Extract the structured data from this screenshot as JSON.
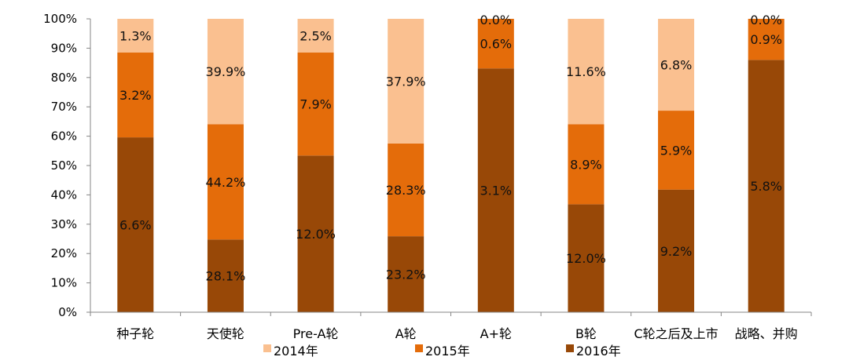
{
  "chart_data": {
    "type": "bar",
    "stacked": true,
    "categories": [
      "种子轮",
      "天使轮",
      "Pre-A轮",
      "A轮",
      "A+轮",
      "B轮",
      "C轮之后及上市",
      "战略、并购"
    ],
    "y_ticks": [
      "0%",
      "10%",
      "20%",
      "30%",
      "40%",
      "50%",
      "60%",
      "70%",
      "80%",
      "90%",
      "100%"
    ],
    "ylim": [
      0,
      100
    ],
    "series": [
      {
        "name": "2016年",
        "color": "#984807",
        "values": [
          59.6,
          24.8,
          53.4,
          25.9,
          83.1,
          36.8,
          41.8,
          86.0
        ],
        "labels": [
          "6.6%",
          "28.1%",
          "12.0%",
          "23.2%",
          "3.1%",
          "12.0%",
          "9.2%",
          "5.8%"
        ]
      },
      {
        "name": "2015年",
        "color": "#e46c0a",
        "values": [
          28.9,
          39.3,
          35.1,
          31.6,
          16.9,
          27.3,
          26.9,
          14.0
        ],
        "labels": [
          "3.2%",
          "44.2%",
          "7.9%",
          "28.3%",
          "0.6%",
          "8.9%",
          "5.9%",
          "0.9%"
        ]
      },
      {
        "name": "2014年",
        "color": "#fac090",
        "values": [
          11.5,
          35.9,
          11.5,
          42.5,
          0.0,
          35.9,
          31.3,
          0.0
        ],
        "labels": [
          "1.3%",
          "39.9%",
          "2.5%",
          "37.9%",
          "0.0%",
          "11.6%",
          "6.8%",
          "0.0%"
        ]
      }
    ],
    "legend": [
      {
        "name": "2014年",
        "color": "#fac090"
      },
      {
        "name": "2015年",
        "color": "#e46c0a"
      },
      {
        "name": "2016年",
        "color": "#984807"
      }
    ],
    "legend_position": "bottom",
    "title": "",
    "xlabel": "",
    "ylabel": "",
    "grid": false
  }
}
